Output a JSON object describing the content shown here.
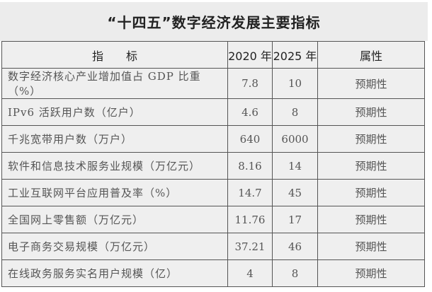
{
  "title": "“十四五”数字经济发展主要指标",
  "headers": [
    "指　　标",
    "2020 年",
    "2025 年",
    "属性"
  ],
  "rows": [
    [
      "数字经济核心产业增加值占 GDP 比重（%）",
      "7.8",
      "10",
      "预期性"
    ],
    [
      "IPv6 活跃用户数（亿户）",
      "4.6",
      "8",
      "预期性"
    ],
    [
      "千兆宽带用户数（万户）",
      "640",
      "6000",
      "预期性"
    ],
    [
      "软件和信息技术服务业规模（万亿元）",
      "8.16",
      "14",
      "预期性"
    ],
    [
      "工业互联网平台应用普及率（%）",
      "14.7",
      "45",
      "预期性"
    ],
    [
      "全国网上零售额（万亿元）",
      "11.76",
      "17",
      "预期性"
    ],
    [
      "电子商务交易规模（万亿元）",
      "37.21",
      "46",
      "预期性"
    ],
    [
      "在线政务服务实名用户规模（亿）",
      "4",
      "8",
      "预期性"
    ]
  ]
}
